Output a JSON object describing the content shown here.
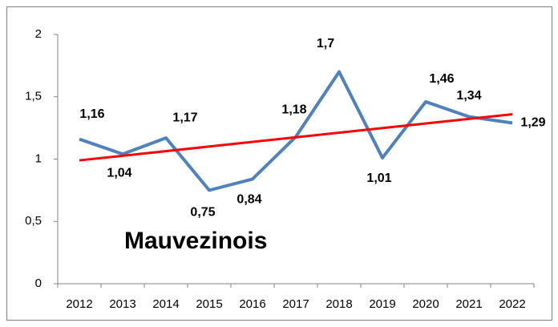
{
  "chart_data": {
    "type": "line",
    "annotation": "Mauvezinois",
    "categories": [
      "2012",
      "2013",
      "2014",
      "2015",
      "2016",
      "2017",
      "2018",
      "2019",
      "2020",
      "2021",
      "2022"
    ],
    "values": [
      1.16,
      1.04,
      1.17,
      0.75,
      0.84,
      1.18,
      1.7,
      1.01,
      1.46,
      1.34,
      1.29
    ],
    "value_labels": [
      "1,16",
      "1,04",
      "1,17",
      "0,75",
      "0,84",
      "1,18",
      "1,7",
      "1,01",
      "1,46",
      "1,34",
      "1,29"
    ],
    "color": "#4f81bd",
    "trendline": {
      "color": "#ff0000",
      "values": [
        0.99,
        1.36
      ]
    },
    "ylim": [
      0,
      2
    ],
    "yticks": [
      0,
      {
        "value": 0.5,
        "label": "0,5"
      },
      1,
      {
        "value": 1.5,
        "label": "1,5"
      },
      2
    ]
  }
}
